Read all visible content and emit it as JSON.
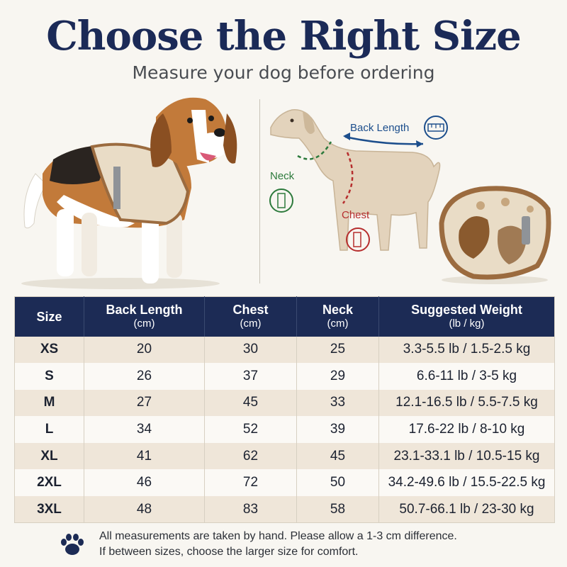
{
  "header": {
    "title": "Choose the Right Size",
    "subtitle": "Measure your dog before ordering"
  },
  "diagram": {
    "back_length_label": "Back Length",
    "neck_label": "Neck",
    "chest_label": "Chest",
    "colors": {
      "back": "#1c4e8c",
      "neck": "#2d7a3c",
      "chest": "#b62e2e"
    }
  },
  "table": {
    "headers": [
      {
        "label": "Size",
        "unit": ""
      },
      {
        "label": "Back Length",
        "unit": "(cm)"
      },
      {
        "label": "Chest",
        "unit": "(cm)"
      },
      {
        "label": "Neck",
        "unit": "(cm)"
      },
      {
        "label": "Suggested Weight",
        "unit": "(lb / kg)"
      }
    ],
    "rows": [
      [
        "XS",
        "20",
        "30",
        "25",
        "3.3-5.5 lb / 1.5-2.5 kg"
      ],
      [
        "S",
        "26",
        "37",
        "29",
        "6.6-11 lb / 3-5 kg"
      ],
      [
        "M",
        "27",
        "45",
        "33",
        "12.1-16.5 lb / 5.5-7.5 kg"
      ],
      [
        "L",
        "34",
        "52",
        "39",
        "17.6-22 lb / 8-10 kg"
      ],
      [
        "XL",
        "41",
        "62",
        "45",
        "23.1-33.1 lb / 10.5-15 kg"
      ],
      [
        "2XL",
        "46",
        "72",
        "50",
        "34.2-49.6 lb / 15.5-22.5 kg"
      ],
      [
        "3XL",
        "48",
        "83",
        "58",
        "50.7-66.1 lb / 23-30 kg"
      ]
    ],
    "header_bg": "#1c2b55"
  },
  "footer": {
    "line1": "All measurements are taken by hand. Please allow a 1-3 cm difference.",
    "line2": "If between sizes, choose the larger size for comfort."
  }
}
